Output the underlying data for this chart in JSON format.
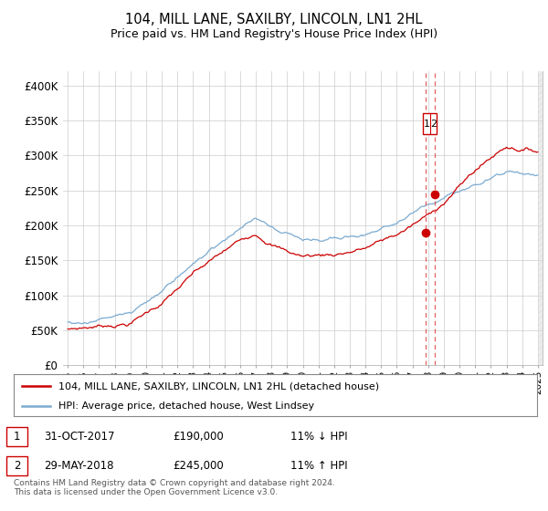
{
  "title": "104, MILL LANE, SAXILBY, LINCOLN, LN1 2HL",
  "subtitle": "Price paid vs. HM Land Registry's House Price Index (HPI)",
  "legend_line1": "104, MILL LANE, SAXILBY, LINCOLN, LN1 2HL (detached house)",
  "legend_line2": "HPI: Average price, detached house, West Lindsey",
  "table_rows": [
    {
      "num": "1",
      "date": "31-OCT-2017",
      "price": "£190,000",
      "hpi": "11% ↓ HPI"
    },
    {
      "num": "2",
      "date": "29-MAY-2018",
      "price": "£245,000",
      "hpi": "11% ↑ HPI"
    }
  ],
  "footnote": "Contains HM Land Registry data © Crown copyright and database right 2024.\nThis data is licensed under the Open Government Licence v3.0.",
  "hpi_color": "#7aaad0",
  "price_color": "#cc0000",
  "dashed_line_color": "#dd4444",
  "background_color": "#ffffff",
  "grid_color": "#cccccc",
  "ylim": [
    0,
    420000
  ],
  "yticks": [
    0,
    50000,
    100000,
    150000,
    200000,
    250000,
    300000,
    350000,
    400000
  ],
  "ytick_labels": [
    "£0",
    "£50K",
    "£100K",
    "£150K",
    "£200K",
    "£250K",
    "£300K",
    "£350K",
    "£400K"
  ],
  "marker1_x": 2017.83,
  "marker1_y": 190000,
  "marker2_x": 2018.41,
  "marker2_y": 245000,
  "vline1_x": 2017.83,
  "vline2_x": 2018.41,
  "xlim_left": 1994.7,
  "xlim_right": 2025.3
}
